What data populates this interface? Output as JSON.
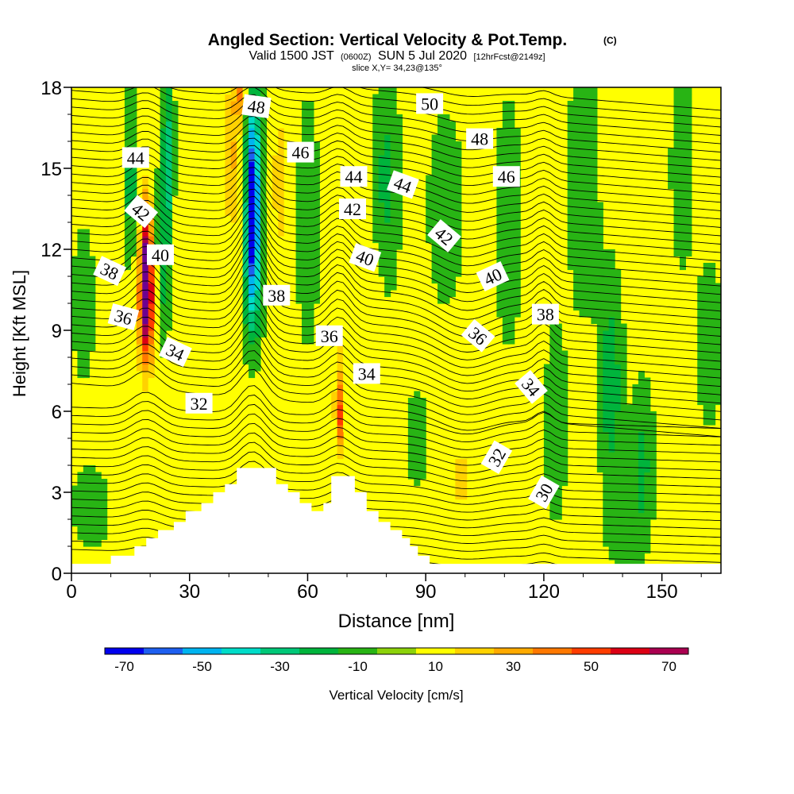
{
  "chart_data": {
    "type": "heatmap",
    "title": "Angled Section: Vertical Velocity & Pot.Temp.",
    "title_suffix": "(C)",
    "subtitle_valid": "Valid 1500 JST",
    "subtitle_utc": "(0600Z)",
    "subtitle_date": "SUN 5 Jul 2020",
    "subtitle_fcst": "[12hrFcst@2149z]",
    "subtitle_slice": "slice X,Y= 34,23@135°",
    "xlabel": "Distance [nm]",
    "ylabel": "Height [Kft MSL]",
    "xlim": [
      0,
      165
    ],
    "ylim": [
      0,
      18
    ],
    "x_ticks": [
      "0",
      "30",
      "60",
      "90",
      "120",
      "150"
    ],
    "y_ticks": [
      "0",
      "3",
      "6",
      "9",
      "12",
      "15",
      "18"
    ],
    "colorbar_label": "Vertical Velocity [cm/s]",
    "colorbar_ticks": [
      "-70",
      "-50",
      "-30",
      "-10",
      "10",
      "30",
      "50",
      "70"
    ],
    "colorbar_levels": [
      -75,
      -65,
      -55,
      -45,
      -35,
      -25,
      -15,
      -5,
      5,
      15,
      25,
      35,
      45,
      55,
      65,
      75
    ],
    "colorbar_colors": [
      "#0000ee",
      "#1e5ff0",
      "#00b4f0",
      "#00dcc8",
      "#00c878",
      "#00b43c",
      "#28b414",
      "#8cd20a",
      "#ffff00",
      "#ffd200",
      "#ffaa00",
      "#ff7800",
      "#ff3c00",
      "#dc0014",
      "#aa0050",
      "#6e0090"
    ],
    "theta_labels": [
      {
        "text": "44",
        "x": 16.3,
        "y": 15.4,
        "rot": 0
      },
      {
        "text": "42",
        "x": 17.7,
        "y": 13.4,
        "rot": 40
      },
      {
        "text": "40",
        "x": 22.6,
        "y": 11.8,
        "rot": 0
      },
      {
        "text": "38",
        "x": 9.7,
        "y": 11.2,
        "rot": 25
      },
      {
        "text": "36",
        "x": 13.2,
        "y": 9.5,
        "rot": 15
      },
      {
        "text": "34",
        "x": 26.4,
        "y": 8.2,
        "rot": 25
      },
      {
        "text": "32",
        "x": 32.4,
        "y": 6.3,
        "rot": 0
      },
      {
        "text": "48",
        "x": 47.0,
        "y": 17.3,
        "rot": 8
      },
      {
        "text": "46",
        "x": 58.2,
        "y": 15.6,
        "rot": 0
      },
      {
        "text": "44",
        "x": 71.7,
        "y": 14.7,
        "rot": 0
      },
      {
        "text": "42",
        "x": 71.4,
        "y": 13.5,
        "rot": 0
      },
      {
        "text": "40",
        "x": 74.6,
        "y": 11.7,
        "rot": 20
      },
      {
        "text": "38",
        "x": 52.1,
        "y": 10.3,
        "rot": 0
      },
      {
        "text": "36",
        "x": 65.5,
        "y": 8.8,
        "rot": 0
      },
      {
        "text": "34",
        "x": 75.0,
        "y": 7.4,
        "rot": 0
      },
      {
        "text": "50",
        "x": 91.0,
        "y": 17.4,
        "rot": 0
      },
      {
        "text": "48",
        "x": 103.7,
        "y": 16.1,
        "rot": 0
      },
      {
        "text": "46",
        "x": 110.5,
        "y": 14.7,
        "rot": 0
      },
      {
        "text": "44",
        "x": 84.2,
        "y": 14.4,
        "rot": 20
      },
      {
        "text": "42",
        "x": 94.7,
        "y": 12.5,
        "rot": 40
      },
      {
        "text": "40",
        "x": 107.0,
        "y": 11.0,
        "rot": -25
      },
      {
        "text": "38",
        "x": 120.4,
        "y": 9.6,
        "rot": 0
      },
      {
        "text": "36",
        "x": 103.3,
        "y": 8.8,
        "rot": 40
      },
      {
        "text": "34",
        "x": 116.8,
        "y": 6.9,
        "rot": 50
      },
      {
        "text": "32",
        "x": 108.0,
        "y": 4.3,
        "rot": -60
      },
      {
        "text": "30",
        "x": 120.0,
        "y": 3.0,
        "rot": -60
      }
    ],
    "terrain": [
      [
        0,
        0.35
      ],
      [
        10,
        0.35
      ],
      [
        10,
        0.65
      ],
      [
        16,
        0.65
      ],
      [
        16,
        1.0
      ],
      [
        19,
        1.0
      ],
      [
        19,
        1.3
      ],
      [
        22,
        1.3
      ],
      [
        22,
        1.6
      ],
      [
        26,
        1.6
      ],
      [
        26,
        1.9
      ],
      [
        29,
        1.9
      ],
      [
        29,
        2.3
      ],
      [
        33,
        2.3
      ],
      [
        33,
        2.6
      ],
      [
        36,
        2.6
      ],
      [
        36,
        3.0
      ],
      [
        39,
        3.0
      ],
      [
        39,
        3.3
      ],
      [
        42,
        3.3
      ],
      [
        42,
        3.9
      ],
      [
        52,
        3.9
      ],
      [
        52,
        3.3
      ],
      [
        55,
        3.3
      ],
      [
        55,
        3.0
      ],
      [
        58,
        3.0
      ],
      [
        58,
        2.6
      ],
      [
        61,
        2.6
      ],
      [
        61,
        2.3
      ],
      [
        64,
        2.3
      ],
      [
        64,
        2.6
      ],
      [
        66,
        2.6
      ],
      [
        66,
        3.6
      ],
      [
        72,
        3.6
      ],
      [
        72,
        3.0
      ],
      [
        75,
        3.0
      ],
      [
        75,
        2.3
      ],
      [
        78,
        2.3
      ],
      [
        78,
        1.9
      ],
      [
        81,
        1.9
      ],
      [
        81,
        1.6
      ],
      [
        84,
        1.6
      ],
      [
        84,
        1.3
      ],
      [
        86,
        1.3
      ],
      [
        86,
        1.0
      ],
      [
        88,
        1.0
      ],
      [
        88,
        0.65
      ],
      [
        91,
        0.65
      ],
      [
        91,
        0.35
      ],
      [
        165,
        0.35
      ]
    ],
    "vv_features": [
      {
        "x": 19,
        "y": 11.2,
        "sx": 1.6,
        "sy": 2.8,
        "a": 80
      },
      {
        "x": 19,
        "y": 9.3,
        "sx": 2.8,
        "sy": 2.2,
        "a": 28
      },
      {
        "x": 23,
        "y": 11.5,
        "sx": 1.8,
        "sy": 3.5,
        "a": -20
      },
      {
        "x": 15,
        "y": 14.5,
        "sx": 1.8,
        "sy": 3.0,
        "a": -22
      },
      {
        "x": 24.5,
        "y": 15.5,
        "sx": 1.5,
        "sy": 3.5,
        "a": -28
      },
      {
        "x": 46,
        "y": 13.5,
        "sx": 1.7,
        "sy": 2.6,
        "a": -72
      },
      {
        "x": 46,
        "y": 10.5,
        "sx": 2.4,
        "sy": 2.4,
        "a": -30
      },
      {
        "x": 46,
        "y": 16.5,
        "sx": 2.4,
        "sy": 2.2,
        "a": -28
      },
      {
        "x": 41,
        "y": 15.5,
        "sx": 3.0,
        "sy": 3.5,
        "a": 26
      },
      {
        "x": 53,
        "y": 14.5,
        "sx": 2.4,
        "sy": 3.2,
        "a": 22
      },
      {
        "x": 43,
        "y": 17.8,
        "sx": 1.5,
        "sy": 1.0,
        "a": 30
      },
      {
        "x": 68,
        "y": 5.8,
        "sx": 1.0,
        "sy": 1.4,
        "a": 40
      },
      {
        "x": 68,
        "y": 7.5,
        "sx": 2.0,
        "sy": 2.6,
        "a": 16
      },
      {
        "x": 60,
        "y": 13,
        "sx": 3.0,
        "sy": 4.5,
        "a": -14
      },
      {
        "x": 80,
        "y": 14.5,
        "sx": 3.5,
        "sy": 4.0,
        "a": -18
      },
      {
        "x": 76,
        "y": 8.0,
        "sx": 3.0,
        "sy": 3.5,
        "a": 12
      },
      {
        "x": 95,
        "y": 13.5,
        "sx": 4.5,
        "sy": 3.5,
        "a": -14
      },
      {
        "x": 99,
        "y": 3.5,
        "sx": 6.0,
        "sy": 3.2,
        "a": 16
      },
      {
        "x": 111,
        "y": 13,
        "sx": 3.5,
        "sy": 4.5,
        "a": -14
      },
      {
        "x": 130,
        "y": 14.5,
        "sx": 4.0,
        "sy": 5.0,
        "a": -14
      },
      {
        "x": 137,
        "y": 7.0,
        "sx": 3.0,
        "sy": 4.0,
        "a": -22
      },
      {
        "x": 145,
        "y": 4.0,
        "sx": 3.0,
        "sy": 3.0,
        "a": -18
      },
      {
        "x": 123,
        "y": 5.5,
        "sx": 3.0,
        "sy": 4.0,
        "a": -12
      },
      {
        "x": 155,
        "y": 15,
        "sx": 3.0,
        "sy": 4.0,
        "a": -12
      },
      {
        "x": 162,
        "y": 8.5,
        "sx": 3.5,
        "sy": 3.0,
        "a": -14
      },
      {
        "x": 5,
        "y": 2.5,
        "sx": 5.0,
        "sy": 1.5,
        "a": -14
      },
      {
        "x": 3,
        "y": 10,
        "sx": 3.0,
        "sy": 3.0,
        "a": -12
      },
      {
        "x": 12,
        "y": 5,
        "sx": 3.0,
        "sy": 2.0,
        "a": 12
      },
      {
        "x": 30,
        "y": 12,
        "sx": 3.0,
        "sy": 4.0,
        "a": 10
      },
      {
        "x": 88,
        "y": 5.0,
        "sx": 3.0,
        "sy": 2.0,
        "a": -12
      },
      {
        "x": 140,
        "y": 1.5,
        "sx": 4.0,
        "sy": 1.2,
        "a": -12
      }
    ]
  }
}
